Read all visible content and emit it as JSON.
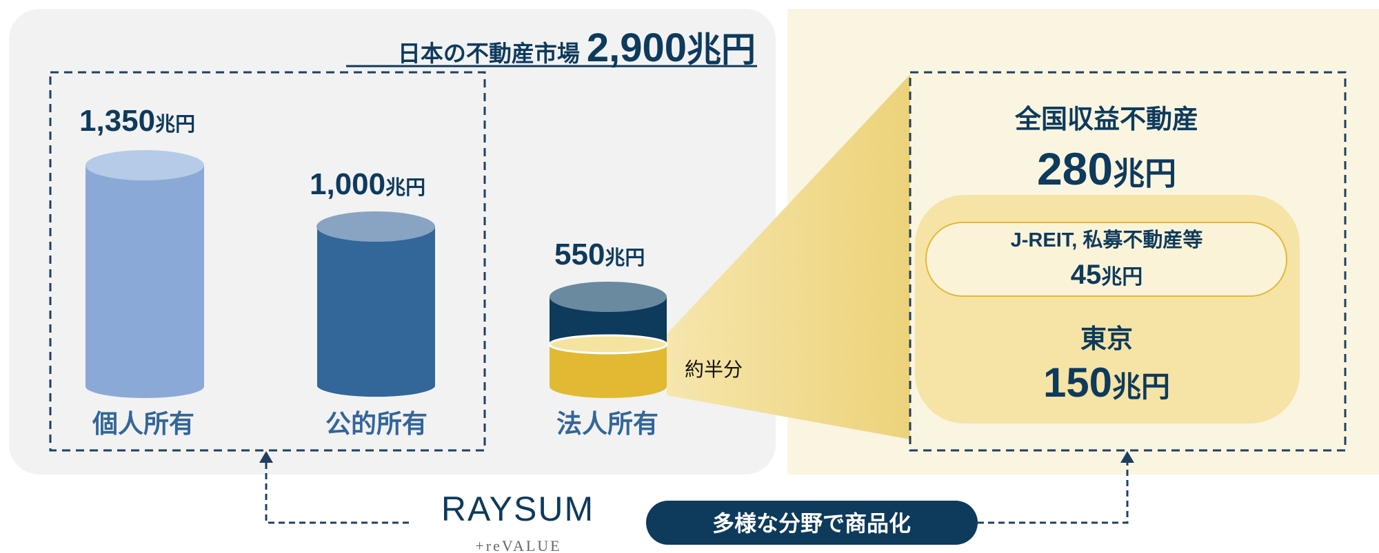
{
  "title": {
    "text": "日本の不動産市場",
    "amount": "2,900",
    "unit": "兆円"
  },
  "owners": [
    {
      "amount": "1,350",
      "unit": "兆円",
      "label": "個人所有"
    },
    {
      "amount": "1,000",
      "unit": "兆円",
      "label": "公的所有"
    },
    {
      "amount": "550",
      "unit": "兆円",
      "label": "法人所有"
    }
  ],
  "half_note": "約半分",
  "detail": {
    "title": "全国収益不動産",
    "amount": "280",
    "unit": "兆円",
    "reit": {
      "label": "J-REIT, 私募不動産等",
      "amount": "45",
      "unit": "兆円"
    },
    "tokyo": {
      "label": "東京",
      "amount": "150",
      "unit": "兆円"
    }
  },
  "logo": {
    "name": "RAYSUM",
    "tagline": "+reVALUE"
  },
  "button": "多様な分野で商品化"
}
